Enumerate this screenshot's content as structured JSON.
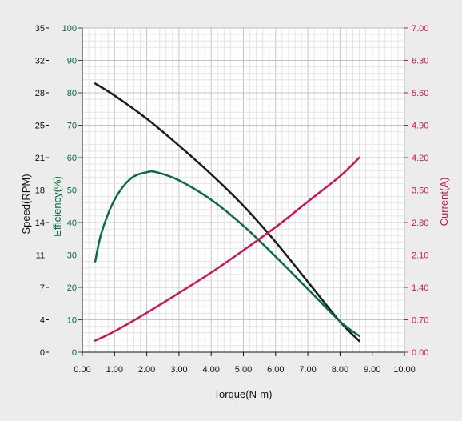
{
  "chart_data": {
    "type": "line",
    "x_axis": {
      "label": "Torque(N-m)",
      "range": [
        0,
        10
      ],
      "ticks": [
        "0.00",
        "1.00",
        "2.00",
        "3.00",
        "4.00",
        "5.00",
        "6.00",
        "7.00",
        "8.00",
        "9.00",
        "10.00"
      ]
    },
    "y_axes": {
      "speed": {
        "label": "Speed(RPM)",
        "range": [
          0,
          35
        ],
        "ticks": [
          "0",
          "4",
          "7",
          "11",
          "14",
          "18",
          "21",
          "25",
          "28",
          "32",
          "35"
        ],
        "color": "#111111"
      },
      "efficiency": {
        "label": "Efficiency(%)",
        "range": [
          0,
          100
        ],
        "ticks": [
          "0",
          "10",
          "20",
          "30",
          "40",
          "50",
          "60",
          "70",
          "80",
          "90",
          "100"
        ],
        "color": "#0b6b3a"
      },
      "current": {
        "label": "Current(A)",
        "range": [
          0,
          7
        ],
        "ticks": [
          "0.00",
          "0.70",
          "1.40",
          "2.10",
          "2.80",
          "3.50",
          "4.20",
          "4.90",
          "5.60",
          "6.30",
          "7.00"
        ],
        "color": "#c8145a"
      }
    },
    "grid": true,
    "series": [
      {
        "axis": "speed",
        "color": "#1a1a1a",
        "x": [
          0.4,
          1.0,
          2.0,
          3.0,
          4.0,
          5.0,
          6.0,
          7.0,
          8.0,
          8.6
        ],
        "values": [
          29.0,
          27.7,
          25.2,
          22.3,
          19.2,
          15.8,
          11.9,
          7.6,
          3.3,
          1.2
        ]
      },
      {
        "axis": "efficiency",
        "color": "#0b6b3a",
        "x": [
          0.4,
          0.6,
          1.0,
          1.5,
          2.0,
          2.3,
          3.0,
          4.0,
          5.0,
          6.0,
          7.0,
          8.0,
          8.6
        ],
        "values": [
          28,
          37,
          47,
          53.5,
          55.5,
          55.5,
          53,
          47,
          39,
          29.5,
          19.5,
          9.5,
          5
        ]
      },
      {
        "axis": "current",
        "color": "#c8145a",
        "x": [
          0.4,
          1.0,
          2.0,
          3.0,
          4.0,
          5.0,
          6.0,
          7.0,
          8.0,
          8.6
        ],
        "values": [
          0.25,
          0.45,
          0.85,
          1.28,
          1.72,
          2.2,
          2.7,
          3.25,
          3.8,
          4.2
        ]
      }
    ]
  }
}
